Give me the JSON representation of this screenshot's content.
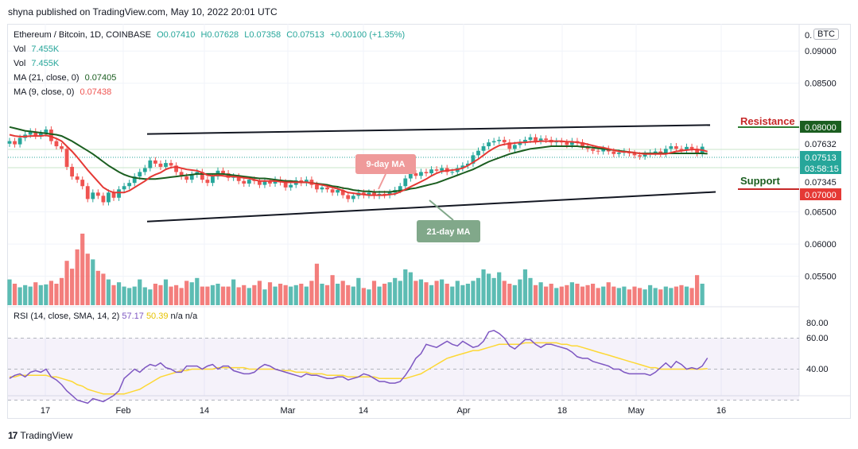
{
  "publisher_line": "shyna published on TradingView.com, May 10, 2022 20:01 UTC",
  "legend": {
    "symbol": "Ethereum / Bitcoin, 1D, COINBASE",
    "open": "O0.07410",
    "high": "H0.07628",
    "low": "L0.07358",
    "close": "C0.07513",
    "change": "+0.00100 (+1.35%)",
    "vol1_label": "Vol",
    "vol1_value": "7.455K",
    "vol2_label": "Vol",
    "vol2_value": "7.455K",
    "ma21_label": "MA (21, close, 0)",
    "ma21_value": "0.07405",
    "ma9_label": "MA (9, close, 0)",
    "ma9_value": "0.07438"
  },
  "rsi_legend": {
    "label": "RSI (14, close, SMA, 14, 2)",
    "v1": "57.17",
    "v2": "50.39",
    "v3": "n/a",
    "v4": "n/a"
  },
  "currency_badge": "BTC",
  "annotations": {
    "ma9": "9-day MA",
    "ma21": "21-day MA",
    "resistance": "Resistance",
    "support": "Support"
  },
  "price_axis": {
    "ticks": [
      "0.09000",
      "0.08500",
      "0.06500",
      "0.06000",
      "0.05500"
    ],
    "top_partial": "0.",
    "labels": [
      {
        "text": "0.08000",
        "bg": "#1b5e20"
      },
      {
        "text": "0.07632",
        "bg": "#ffffff"
      },
      {
        "text": "0.07513",
        "bg": "#26a69a"
      },
      {
        "text": "03:58:15",
        "bg": "#26a69a"
      },
      {
        "text": "0.07345",
        "bg": "#ffffff"
      },
      {
        "text": "0.07000",
        "bg": "#e53935"
      }
    ]
  },
  "rsi_axis": {
    "ticks": [
      "80.00",
      "60.00",
      "40.00"
    ]
  },
  "time_axis": {
    "ticks": [
      "17",
      "Feb",
      "14",
      "Mar",
      "14",
      "Apr",
      "18",
      "May",
      "16"
    ]
  },
  "footer": {
    "brand": "TradingView",
    "logo": "17"
  },
  "colors": {
    "up": "#26a69a",
    "down": "#ef5350",
    "ma9": "#e53935",
    "ma21": "#1b5e20",
    "rsi": "#7e57c2",
    "rsi_sma": "#fdd835"
  },
  "chart_data": {
    "type": "candlestick",
    "title": "Ethereum / Bitcoin, 1D, COINBASE",
    "x_ticks": [
      "17",
      "Feb",
      "14",
      "Mar",
      "14",
      "Apr",
      "18",
      "May",
      "16"
    ],
    "ylim": [
      0.0505,
      0.0925
    ],
    "y_ticks": [
      0.055,
      0.06,
      0.065,
      0.085,
      0.09
    ],
    "close": [
      0.076,
      0.0755,
      0.0765,
      0.077,
      0.0775,
      0.0768,
      0.0772,
      0.0778,
      0.076,
      0.0752,
      0.0748,
      0.072,
      0.0705,
      0.07,
      0.069,
      0.067,
      0.068,
      0.0675,
      0.0665,
      0.068,
      0.0672,
      0.0685,
      0.069,
      0.0695,
      0.0705,
      0.0712,
      0.0718,
      0.073,
      0.0725,
      0.072,
      0.0726,
      0.0722,
      0.0712,
      0.0705,
      0.07,
      0.0708,
      0.0712,
      0.07,
      0.0695,
      0.0705,
      0.0714,
      0.071,
      0.0703,
      0.0705,
      0.0698,
      0.0694,
      0.07,
      0.0698,
      0.0692,
      0.0697,
      0.0694,
      0.07,
      0.0696,
      0.0688,
      0.0692,
      0.0699,
      0.0695,
      0.07,
      0.0692,
      0.0685,
      0.0688,
      0.0685,
      0.068,
      0.0684,
      0.0676,
      0.067,
      0.0675,
      0.068,
      0.0676,
      0.068,
      0.0675,
      0.0678,
      0.0676,
      0.068,
      0.0684,
      0.069,
      0.0702,
      0.071,
      0.0706,
      0.0712,
      0.071,
      0.0716,
      0.0714,
      0.0718,
      0.0712,
      0.0712,
      0.0718,
      0.0722,
      0.0725,
      0.0738,
      0.0745,
      0.0752,
      0.0758,
      0.076,
      0.0762,
      0.0758,
      0.0748,
      0.0754,
      0.0758,
      0.0762,
      0.0766,
      0.076,
      0.0764,
      0.0762,
      0.0758,
      0.076,
      0.0758,
      0.0754,
      0.076,
      0.0758,
      0.0752,
      0.0748,
      0.0745,
      0.0744,
      0.0748,
      0.0744,
      0.074,
      0.0742,
      0.0744,
      0.0741,
      0.0738,
      0.0736,
      0.074,
      0.0742,
      0.0744,
      0.074,
      0.0748,
      0.0752,
      0.0748,
      0.0746,
      0.0751,
      0.0748,
      0.0741,
      0.07513
    ],
    "ma9": [
      0.077,
      0.0768,
      0.0767,
      0.0767,
      0.0768,
      0.0768,
      0.0768,
      0.0769,
      0.0767,
      0.0764,
      0.076,
      0.0752,
      0.0744,
      0.0735,
      0.0725,
      0.0715,
      0.0706,
      0.0697,
      0.0688,
      0.0683,
      0.068,
      0.068,
      0.068,
      0.0683,
      0.0688,
      0.0693,
      0.0698,
      0.0704,
      0.0708,
      0.0711,
      0.0716,
      0.0719,
      0.072,
      0.0718,
      0.0716,
      0.0715,
      0.0714,
      0.0711,
      0.0707,
      0.0706,
      0.0707,
      0.0706,
      0.0705,
      0.0705,
      0.0704,
      0.0703,
      0.0702,
      0.07,
      0.0698,
      0.0698,
      0.0698,
      0.0698,
      0.0697,
      0.0696,
      0.0696,
      0.0696,
      0.0696,
      0.0696,
      0.0695,
      0.0693,
      0.0692,
      0.069,
      0.0688,
      0.0686,
      0.0683,
      0.068,
      0.0679,
      0.0678,
      0.0677,
      0.0676,
      0.0676,
      0.0676,
      0.0676,
      0.0677,
      0.0678,
      0.0681,
      0.0685,
      0.0689,
      0.0693,
      0.0697,
      0.0701,
      0.0706,
      0.071,
      0.0713,
      0.0714,
      0.0715,
      0.0716,
      0.0718,
      0.0722,
      0.0727,
      0.0732,
      0.0738,
      0.0744,
      0.0749,
      0.0753,
      0.0755,
      0.0756,
      0.0757,
      0.0758,
      0.0758,
      0.0759,
      0.0759,
      0.076,
      0.076,
      0.076,
      0.076,
      0.076,
      0.0759,
      0.0759,
      0.0758,
      0.0757,
      0.0755,
      0.0753,
      0.0751,
      0.075,
      0.0748,
      0.0746,
      0.0744,
      0.0743,
      0.0743,
      0.0742,
      0.0741,
      0.074,
      0.074,
      0.074,
      0.074,
      0.074,
      0.0742,
      0.0744,
      0.0745,
      0.0746,
      0.0747,
      0.0747,
      0.0746,
      0.07438
    ],
    "ma21": [
      0.0782,
      0.078,
      0.0778,
      0.0776,
      0.0775,
      0.0774,
      0.0773,
      0.0772,
      0.0771,
      0.077,
      0.0768,
      0.0764,
      0.076,
      0.0755,
      0.075,
      0.0745,
      0.074,
      0.0734,
      0.0728,
      0.0722,
      0.0717,
      0.0712,
      0.0708,
      0.0705,
      0.0703,
      0.0702,
      0.0701,
      0.0701,
      0.0701,
      0.0702,
      0.0703,
      0.0704,
      0.0705,
      0.0706,
      0.0707,
      0.0708,
      0.0709,
      0.0709,
      0.0709,
      0.0709,
      0.0709,
      0.0709,
      0.0708,
      0.0707,
      0.0706,
      0.0705,
      0.0704,
      0.0703,
      0.0702,
      0.0702,
      0.0701,
      0.07,
      0.0699,
      0.0698,
      0.0698,
      0.0697,
      0.0696,
      0.0696,
      0.0695,
      0.0694,
      0.0693,
      0.0692,
      0.069,
      0.0689,
      0.0687,
      0.0686,
      0.0684,
      0.0683,
      0.0682,
      0.0682,
      0.0681,
      0.0681,
      0.0681,
      0.0681,
      0.0682,
      0.0683,
      0.0684,
      0.0686,
      0.0687,
      0.0689,
      0.0691,
      0.0693,
      0.0695,
      0.0698,
      0.0701,
      0.0704,
      0.0707,
      0.071,
      0.0713,
      0.0716,
      0.072,
      0.0724,
      0.0728,
      0.0731,
      0.0734,
      0.0737,
      0.074,
      0.0742,
      0.0744,
      0.0746,
      0.0748,
      0.0749,
      0.075,
      0.0751,
      0.0752,
      0.0752,
      0.0752,
      0.0752,
      0.0752,
      0.0752,
      0.0751,
      0.0751,
      0.075,
      0.0749,
      0.0748,
      0.0747,
      0.0746,
      0.0745,
      0.0744,
      0.0743,
      0.0742,
      0.0741,
      0.0741,
      0.0741,
      0.0741,
      0.0741,
      0.0741,
      0.0741,
      0.0741,
      0.0741,
      0.0741,
      0.0741,
      0.0741,
      0.0741,
      0.07405
    ],
    "volume": [
      3.6,
      3.0,
      2.5,
      2.8,
      2.6,
      3.2,
      2.8,
      2.9,
      3.4,
      3.0,
      3.8,
      6.2,
      5.1,
      7.8,
      10.0,
      7.2,
      6.4,
      4.8,
      4.4,
      3.6,
      2.8,
      3.2,
      2.6,
      2.4,
      2.6,
      3.6,
      2.5,
      2.2,
      3.0,
      2.8,
      3.6,
      2.6,
      2.8,
      2.4,
      3.4,
      3.2,
      3.8,
      2.6,
      2.6,
      2.8,
      3.0,
      2.6,
      2.6,
      3.6,
      2.5,
      2.8,
      2.4,
      2.8,
      3.4,
      2.2,
      3.2,
      2.6,
      3.0,
      2.8,
      2.6,
      2.8,
      3.0,
      2.6,
      3.4,
      5.8,
      3.0,
      2.8,
      4.2,
      3.0,
      3.4,
      2.8,
      2.6,
      3.8,
      2.4,
      2.2,
      3.4,
      2.6,
      3.0,
      3.2,
      3.8,
      3.4,
      5.0,
      4.6,
      3.4,
      3.6,
      3.2,
      2.8,
      3.4,
      3.6,
      3.0,
      2.6,
      3.4,
      2.8,
      3.0,
      3.4,
      3.8,
      5.0,
      4.4,
      3.8,
      4.6,
      3.4,
      3.0,
      2.8,
      3.6,
      5.0,
      3.8,
      2.8,
      3.2,
      2.6,
      3.0,
      2.4,
      2.6,
      2.8,
      3.2,
      3.0,
      2.6,
      2.8,
      3.0,
      2.4,
      2.6,
      3.2,
      2.6,
      2.4,
      2.6,
      2.2,
      2.6,
      2.4,
      2.2,
      2.8,
      2.4,
      2.2,
      2.6,
      2.4,
      2.6,
      2.8,
      2.6,
      2.4,
      4.2,
      3.0
    ],
    "rsi": [
      44,
      46,
      47,
      45,
      48,
      49,
      48,
      50,
      45,
      43,
      40,
      36,
      33,
      30,
      29,
      28,
      31,
      30,
      29,
      31,
      33,
      36,
      44,
      47,
      50,
      48,
      51,
      53,
      52,
      54,
      51,
      50,
      48,
      48,
      52,
      52,
      52,
      50,
      52,
      53,
      50,
      52,
      52,
      49,
      48,
      47,
      47,
      48,
      51,
      53,
      52,
      50,
      49,
      48,
      47,
      46,
      45,
      47,
      46,
      46,
      45,
      44,
      44,
      45,
      45,
      43,
      44,
      45,
      47,
      46,
      44,
      42,
      42,
      41,
      41,
      42,
      46,
      51,
      57,
      60,
      66,
      65,
      64,
      66,
      68,
      66,
      65,
      68,
      66,
      64,
      65,
      68,
      74,
      75,
      73,
      70,
      65,
      63,
      66,
      69,
      69,
      66,
      64,
      66,
      66,
      65,
      64,
      63,
      61,
      58,
      57,
      57,
      55,
      54,
      53,
      52,
      50,
      50,
      48,
      47,
      47,
      47,
      47,
      46,
      48,
      51,
      54,
      51,
      55,
      53,
      50,
      51,
      50,
      52,
      57.17
    ],
    "rsi_sma": [
      45,
      45,
      46,
      46,
      46,
      46,
      46,
      46,
      45,
      45,
      44,
      43,
      42,
      40,
      39,
      37,
      36,
      35,
      34,
      34,
      34,
      34,
      34,
      35,
      36,
      37,
      39,
      41,
      43,
      45,
      46,
      47,
      48,
      49,
      49,
      50,
      50,
      50,
      50,
      50,
      51,
      51,
      51,
      51,
      51,
      51,
      50,
      50,
      50,
      50,
      50,
      50,
      49,
      49,
      49,
      48,
      48,
      48,
      47,
      47,
      47,
      46,
      46,
      46,
      46,
      45,
      45,
      45,
      45,
      45,
      45,
      44,
      44,
      44,
      44,
      44,
      44,
      45,
      46,
      47,
      49,
      51,
      53,
      55,
      57,
      58,
      59,
      60,
      61,
      62,
      62,
      63,
      64,
      65,
      66,
      66,
      66,
      66,
      66,
      67,
      67,
      67,
      67,
      67,
      67,
      67,
      66,
      66,
      65,
      65,
      64,
      63,
      62,
      61,
      60,
      59,
      58,
      57,
      56,
      55,
      54,
      53,
      52,
      51,
      51,
      50,
      50,
      50,
      50,
      50,
      50,
      50,
      50,
      50,
      50.39
    ],
    "trendlines": [
      {
        "name": "upper-channel",
        "from": [
          "Feb 4",
          0.0771
        ],
        "to": [
          "May 24",
          0.0785
        ]
      },
      {
        "name": "lower-channel",
        "from": [
          "Feb 4",
          0.0635
        ],
        "to": [
          "May 24",
          0.0681
        ]
      }
    ],
    "levels": [
      {
        "name": "Resistance",
        "value": 0.08
      },
      {
        "name": "Support",
        "value": 0.07
      }
    ]
  }
}
